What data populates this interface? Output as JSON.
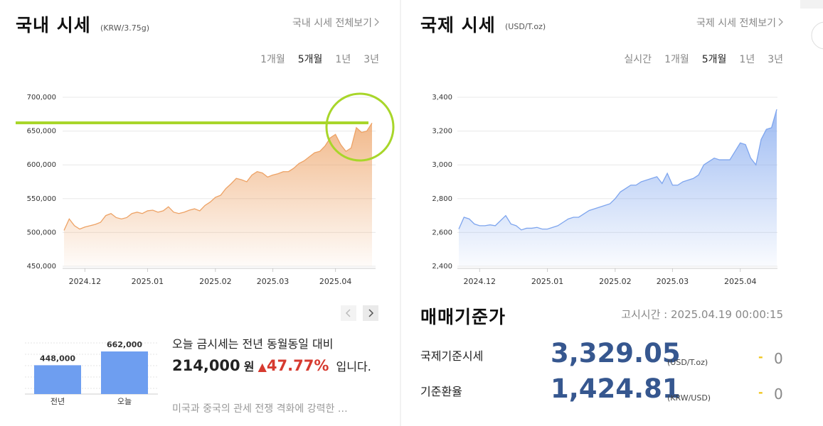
{
  "domestic": {
    "title": "국내 시세",
    "unit": "(KRW/3.75g)",
    "link": "국내 시세 전체보기",
    "tabs": [
      "1개월",
      "5개월",
      "1년",
      "3년"
    ],
    "selected_tab": "5개월"
  },
  "international": {
    "title": "국제 시세",
    "unit": "(USD/T.oz)",
    "link": "국제 시세 전체보기",
    "tabs": [
      "실시간",
      "1개월",
      "5개월",
      "1년",
      "3년"
    ],
    "selected_tab": "5개월"
  },
  "summary": {
    "sentence": "오늘 금시세는 전년 동월동일 대비",
    "difference": "214,000",
    "difference_unit": "원",
    "change_symbol": "▲",
    "change_percent": "47.77%",
    "sentence_end": "입니다.",
    "news": "미국과 중국의 관세 전쟁 격화에 강력한 …"
  },
  "standard": {
    "title": "매매기준가",
    "notice_time": "고시시간 : 2025.04.19 00:00:15",
    "rows": [
      {
        "label": "국제기준시세",
        "value": "3,329.05",
        "unit": "(USD/T.oz)",
        "sign": "-",
        "change": "0"
      },
      {
        "label": "기준환율",
        "value": "1,424.81",
        "unit": "(KRW/USD)",
        "sign": "-",
        "change": "0"
      }
    ]
  },
  "chart_data": [
    {
      "type": "area",
      "color": "#eda265",
      "grid": true,
      "categories": [
        null,
        null,
        null,
        null,
        "2024.12",
        null,
        null,
        null,
        null,
        null,
        null,
        null,
        null,
        null,
        null,
        null,
        "2025.01",
        null,
        null,
        null,
        null,
        null,
        null,
        null,
        null,
        null,
        null,
        null,
        null,
        "2025.02",
        null,
        null,
        null,
        null,
        null,
        null,
        null,
        null,
        null,
        null,
        "2025.03",
        null,
        null,
        null,
        null,
        null,
        null,
        null,
        null,
        null,
        null,
        null,
        "2025.04",
        null,
        null,
        null,
        null,
        null,
        null,
        null
      ],
      "values": [
        503000,
        520000,
        510000,
        505000,
        508000,
        510000,
        512000,
        515000,
        525000,
        528000,
        522000,
        520000,
        522000,
        528000,
        530000,
        528000,
        532000,
        533000,
        530000,
        532000,
        538000,
        530000,
        528000,
        530000,
        533000,
        535000,
        532000,
        540000,
        545000,
        552000,
        555000,
        565000,
        572000,
        580000,
        578000,
        575000,
        585000,
        590000,
        588000,
        582000,
        585000,
        587000,
        590000,
        590000,
        595000,
        602000,
        606000,
        612000,
        618000,
        620000,
        628000,
        640000,
        645000,
        630000,
        620000,
        625000,
        655000,
        648000,
        650000,
        662000
      ],
      "ylim": [
        450000,
        700000
      ],
      "yticks": [
        {
          "value": 450000,
          "label": "450,000"
        },
        {
          "value": 500000,
          "label": "500,000"
        },
        {
          "value": 550000,
          "label": "550,000"
        },
        {
          "value": 600000,
          "label": "600,000"
        },
        {
          "value": 650000,
          "label": "650,000"
        },
        {
          "value": 700000,
          "label": "700,000"
        }
      ]
    },
    {
      "type": "area",
      "color": "#7ea5ee",
      "grid": true,
      "categories": [
        null,
        null,
        null,
        null,
        "2024.12",
        null,
        null,
        null,
        null,
        null,
        null,
        null,
        null,
        null,
        null,
        null,
        null,
        "2025.01",
        null,
        null,
        null,
        null,
        null,
        null,
        null,
        null,
        null,
        null,
        null,
        null,
        "2025.02",
        null,
        null,
        null,
        null,
        null,
        null,
        null,
        null,
        null,
        null,
        "2025.03",
        null,
        null,
        null,
        null,
        null,
        null,
        null,
        null,
        null,
        null,
        null,
        null,
        "2025.04",
        null,
        null,
        null,
        null,
        null,
        null,
        null
      ],
      "values": [
        2620,
        2690,
        2680,
        2650,
        2640,
        2640,
        2645,
        2640,
        2670,
        2700,
        2650,
        2640,
        2615,
        2625,
        2625,
        2630,
        2620,
        2620,
        2630,
        2640,
        2660,
        2680,
        2690,
        2690,
        2710,
        2730,
        2740,
        2750,
        2760,
        2770,
        2800,
        2840,
        2860,
        2880,
        2880,
        2900,
        2910,
        2920,
        2930,
        2890,
        2950,
        2880,
        2880,
        2900,
        2910,
        2920,
        2940,
        3000,
        3020,
        3040,
        3030,
        3030,
        3030,
        3080,
        3130,
        3120,
        3040,
        3000,
        3150,
        3210,
        3220,
        3329
      ],
      "ylim": [
        2400,
        3400
      ],
      "yticks": [
        {
          "value": 2400,
          "label": "2,400"
        },
        {
          "value": 2600,
          "label": "2,600"
        },
        {
          "value": 2800,
          "label": "2,800"
        },
        {
          "value": 3000,
          "label": "3,000"
        },
        {
          "value": 3200,
          "label": "3,200"
        },
        {
          "value": 3400,
          "label": "3,400"
        }
      ]
    },
    {
      "type": "bar",
      "color": "#6e9ef0",
      "categories": [
        "전년",
        "오늘"
      ],
      "values": [
        448000,
        662000
      ],
      "value_labels": [
        "448,000",
        "662,000"
      ]
    }
  ]
}
